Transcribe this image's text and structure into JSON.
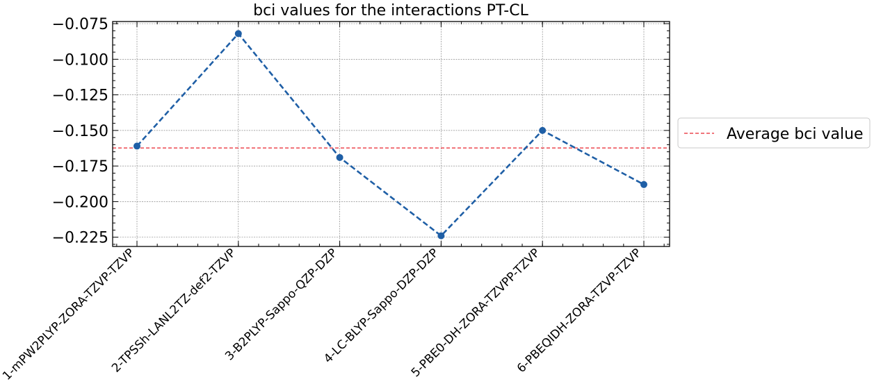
{
  "chart_data": {
    "type": "line",
    "title": "bci values for the interactions PT-CL",
    "categories": [
      "1-mPW2PLYP-ZORA-TZVP-TZVP",
      "2-TPSSh-LANL2TZ-def2-TZVP",
      "3-B2PLYP-Sappo-QZP-DZP",
      "4-LC-BLYP-Sappo-DZP-DZP",
      "5-PBE0-DH-ZORA-TZVPP-TZVP",
      "6-PBEQIDH-ZORA-TZVP-TZVP"
    ],
    "series": [
      {
        "values": [
          -0.161,
          -0.082,
          -0.169,
          -0.224,
          -0.15,
          -0.188
        ],
        "color": "#1f5fa6",
        "style": "dashed",
        "marker": "circle"
      }
    ],
    "reference_lines": [
      {
        "name": "Average bci value",
        "value": -0.1623,
        "color": "#e8232c",
        "style": "dashed"
      }
    ],
    "yticks": [
      "−0.075",
      "−0.100",
      "−0.125",
      "−0.150",
      "−0.175",
      "−0.200",
      "−0.225"
    ],
    "ytick_values": [
      -0.075,
      -0.1,
      -0.125,
      -0.15,
      -0.175,
      -0.2,
      -0.225
    ],
    "ylim": [
      -0.2315,
      -0.0735
    ],
    "xlabel": "",
    "ylabel": "",
    "grid": true,
    "legend_position": "outside-right",
    "legend": [
      {
        "label": "Average bci value",
        "color": "#e8232c",
        "style": "dashed"
      }
    ]
  }
}
